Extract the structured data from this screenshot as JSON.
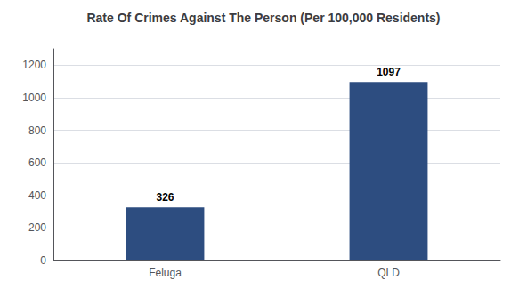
{
  "chart_data": {
    "type": "bar",
    "title": "Rate Of Crimes Against The Person (Per 100,000 Residents)",
    "categories": [
      "Feluga",
      "QLD"
    ],
    "values": [
      326,
      1097
    ],
    "color": "#2d4d80",
    "ylim": [
      0,
      1300
    ],
    "yticks": [
      0,
      200,
      400,
      600,
      800,
      1000,
      1200
    ],
    "grid": true,
    "data_labels": true
  }
}
